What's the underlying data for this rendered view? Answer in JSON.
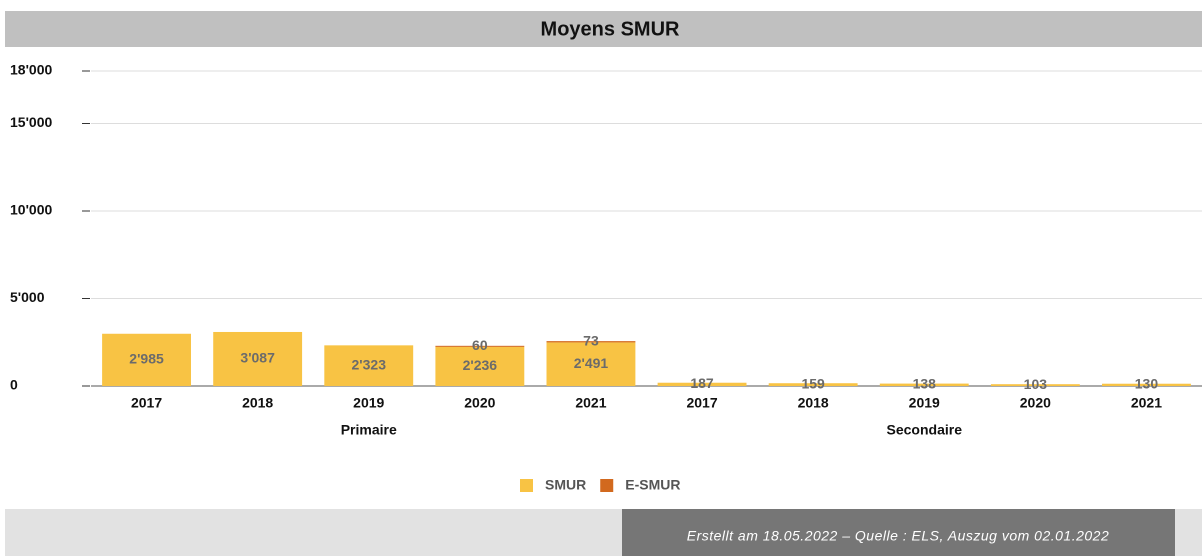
{
  "chart_data": {
    "type": "stacked_bar",
    "title": "Moyens SMUR",
    "categories": [
      "2017",
      "2018",
      "2019",
      "2020",
      "2021",
      "2017",
      "2018",
      "2019",
      "2020",
      "2021"
    ],
    "groups": [
      {
        "label": "Primaire",
        "size": 5
      },
      {
        "label": "Secondaire",
        "size": 5
      }
    ],
    "series": [
      {
        "name": "SMUR",
        "color": "#f8c344",
        "values": [
          2985,
          3087,
          2323,
          2236,
          2491,
          187,
          159,
          138,
          103,
          130
        ],
        "value_labels": [
          "2'985",
          "3'087",
          "2'323",
          "2'236",
          "2'491",
          "187",
          "159",
          "138",
          "103",
          "130"
        ]
      },
      {
        "name": "E-SMUR",
        "color": "#d2691e",
        "values": [
          null,
          null,
          null,
          60,
          73,
          null,
          null,
          null,
          null,
          null
        ]
      }
    ],
    "ylim": [
      0,
      18000
    ],
    "yticks": [
      {
        "value": 0,
        "label": "0"
      },
      {
        "value": 5000,
        "label": "5'000"
      },
      {
        "value": 10000,
        "label": "10'000"
      },
      {
        "value": 15000,
        "label": "15'000"
      },
      {
        "value": 18000,
        "label": "18'000"
      }
    ],
    "grid": true,
    "legend": "bottom",
    "footer": "Erstellt am 18.05.2022 – Quelle : ELS, Auszug vom 02.01.2022"
  }
}
